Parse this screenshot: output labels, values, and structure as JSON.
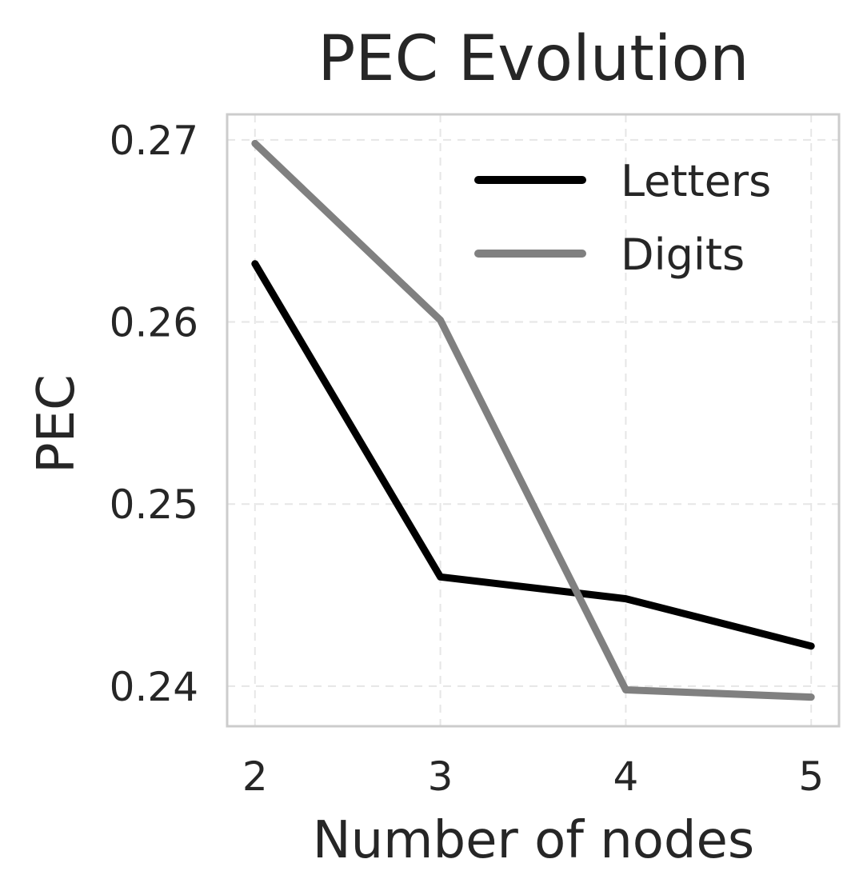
{
  "chart_data": {
    "type": "line",
    "title": "PEC Evolution",
    "xlabel": "Number of nodes",
    "ylabel": "PEC",
    "x": [
      2,
      3,
      4,
      5
    ],
    "x_tick_labels": [
      "2",
      "3",
      "4",
      "5"
    ],
    "y_ticks": [
      0.24,
      0.25,
      0.26,
      0.27
    ],
    "y_tick_labels": [
      "0.24",
      "0.25",
      "0.26",
      "0.27"
    ],
    "xlim": [
      1.85,
      5.15
    ],
    "ylim": [
      0.2378,
      0.2714
    ],
    "grid": true,
    "legend_position": "top-right",
    "series": [
      {
        "name": "Letters",
        "color": "#000000",
        "values": [
          0.2632,
          0.246,
          0.2448,
          0.2422
        ]
      },
      {
        "name": "Digits",
        "color": "#808080",
        "values": [
          0.2698,
          0.2601,
          0.2398,
          0.2394
        ]
      }
    ]
  }
}
